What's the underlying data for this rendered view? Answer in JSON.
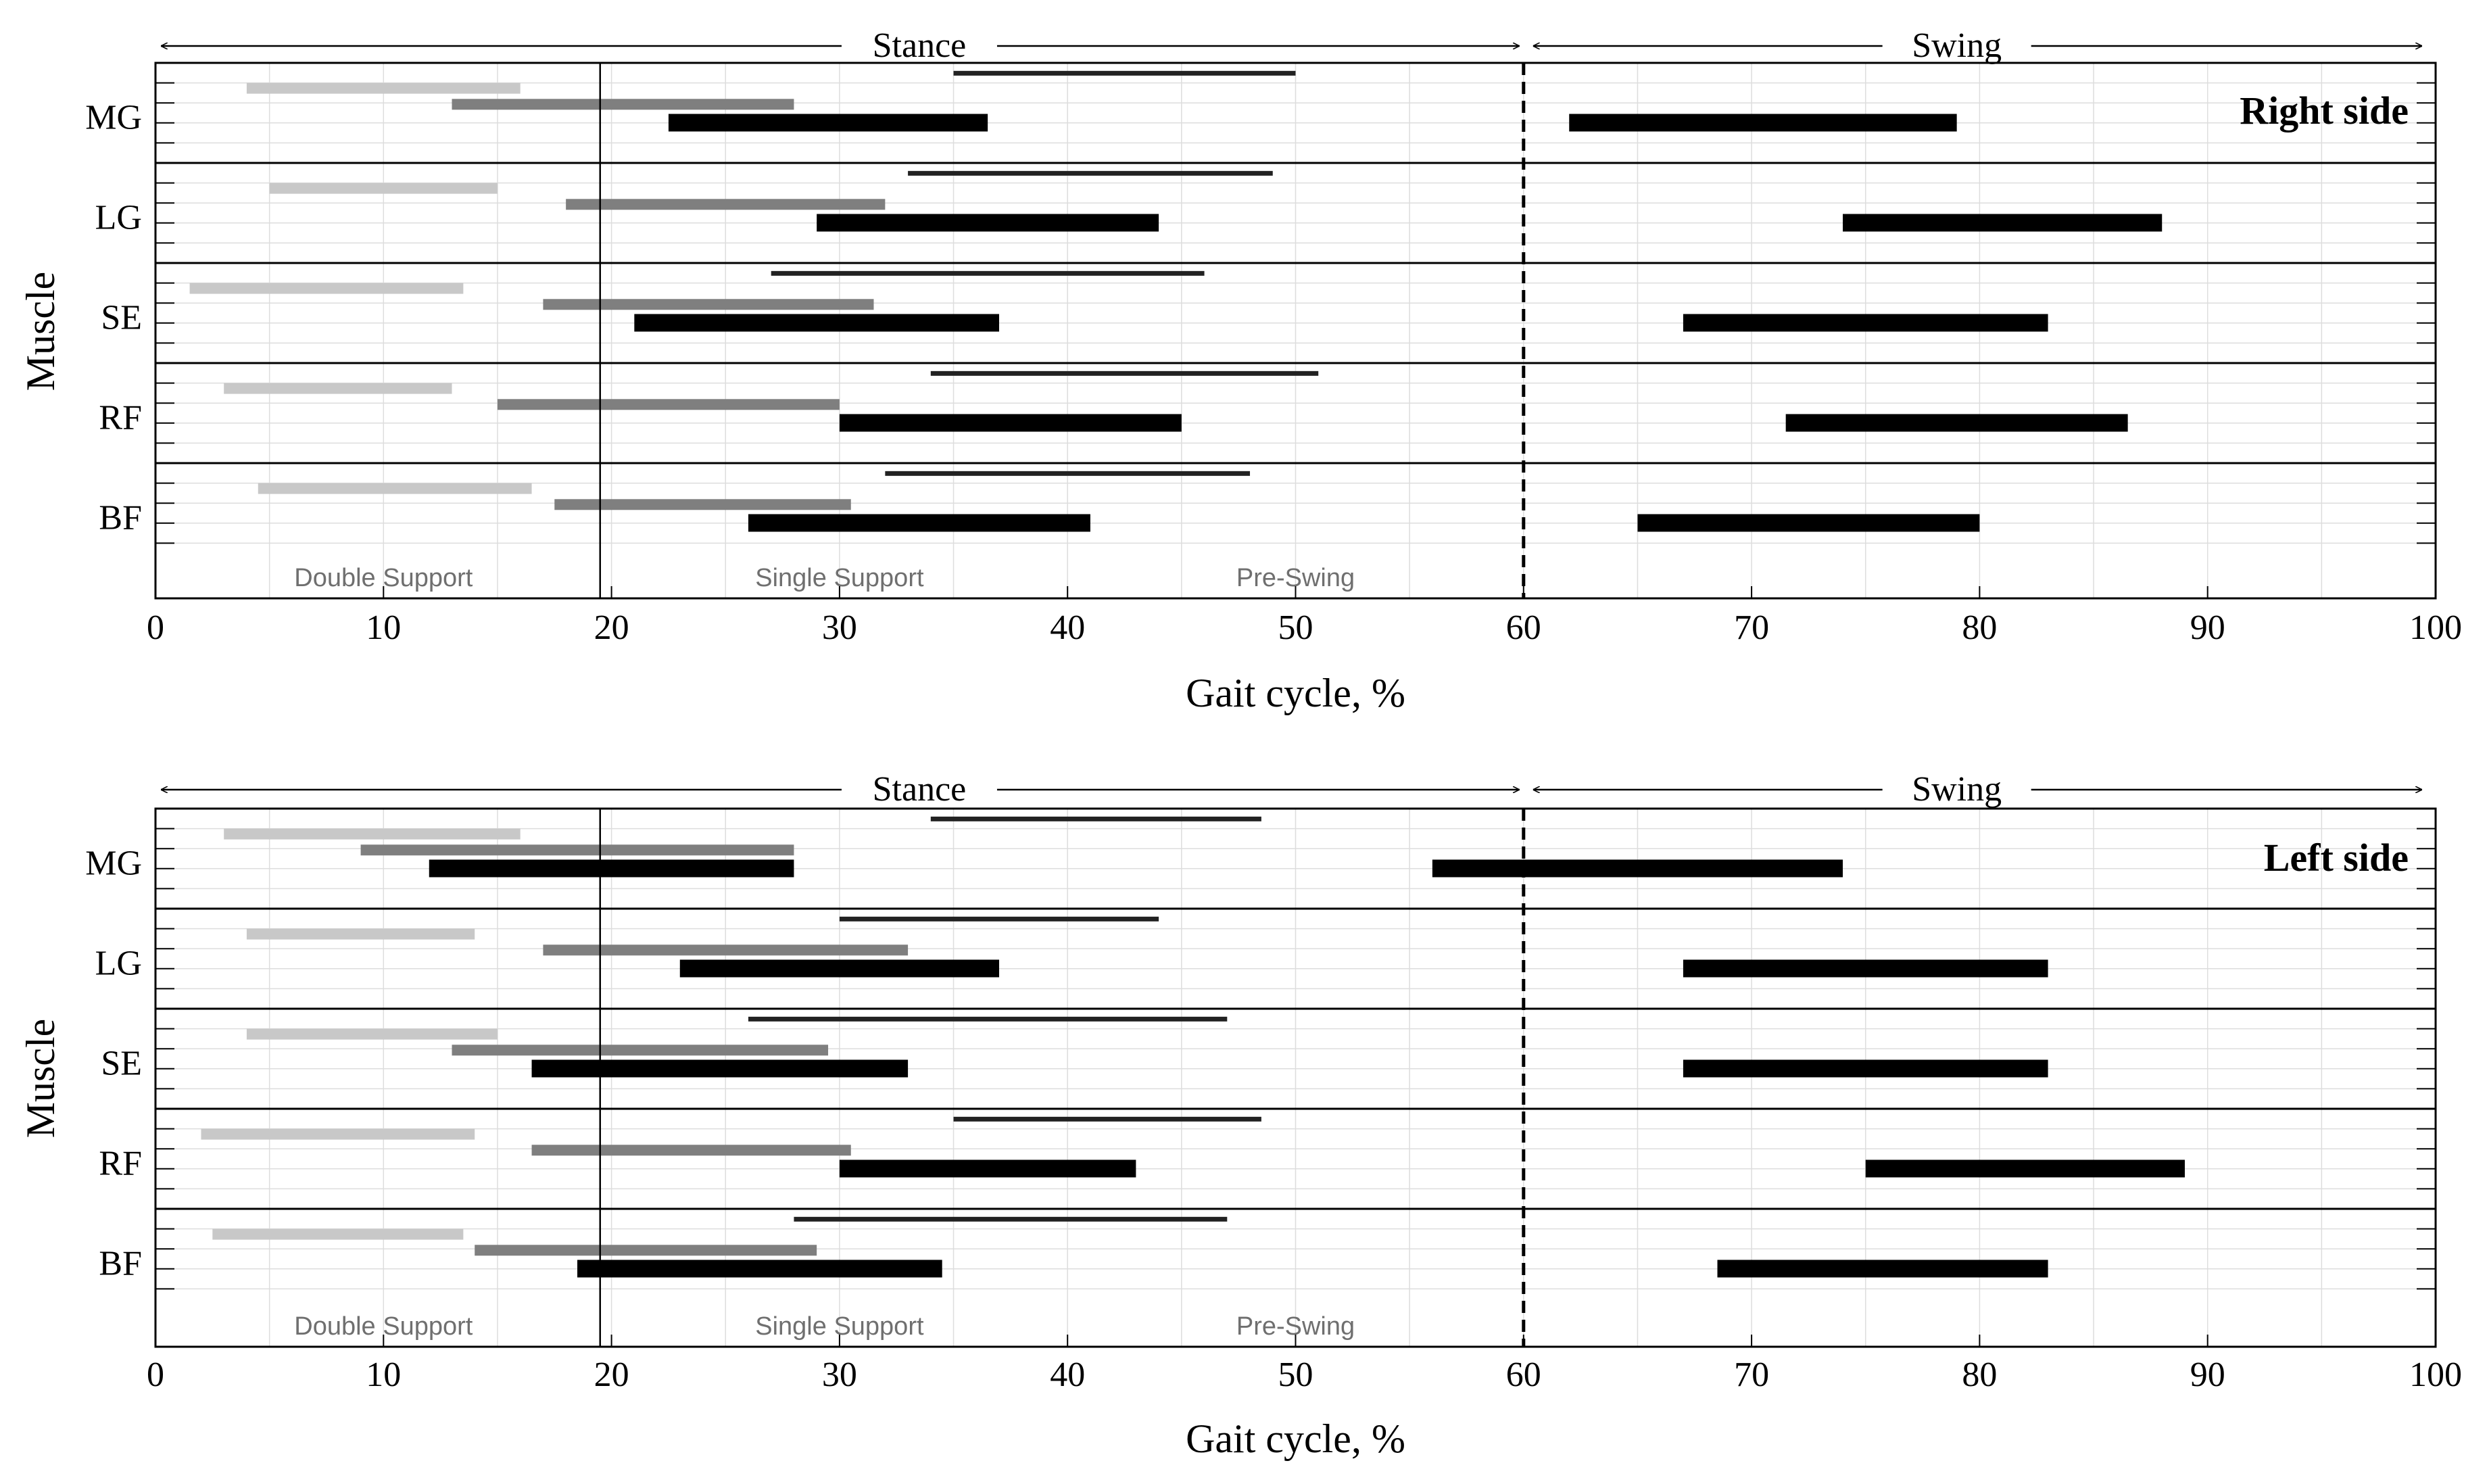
{
  "colors": {
    "light_gray": "#c8c8c8",
    "mid_gray": "#7f7f7f",
    "black": "#000000",
    "grid": "#dddddd",
    "phase_label": "#6f6f6f"
  },
  "chart_data": [
    {
      "type": "gantt",
      "panel": "right",
      "side_label": "Right side",
      "xlabel": "Gait cycle, %",
      "ylabel": "Muscle",
      "xlim": [
        0,
        100
      ],
      "x_ticks": [
        "0",
        "10",
        "20",
        "30",
        "40",
        "50",
        "60",
        "70",
        "80",
        "90",
        "100"
      ],
      "stance_label": "Stance",
      "swing_label": "Swing",
      "stance_swing_boundary": 60,
      "single_support_boundary": 19.5,
      "phase_labels": [
        "Double Support",
        "Single Support",
        "Pre-Swing"
      ],
      "muscles": [
        {
          "name": "MG",
          "bars": [
            {
              "start": 35,
              "end": 50,
              "style": "thin"
            },
            {
              "start": 4,
              "end": 16,
              "style": "light"
            },
            {
              "start": 13,
              "end": 28,
              "style": "mid"
            },
            {
              "start": 22.5,
              "end": 36.5,
              "style": "thick"
            },
            {
              "start": 62,
              "end": 79,
              "style": "thick"
            }
          ]
        },
        {
          "name": "LG",
          "bars": [
            {
              "start": 33,
              "end": 49,
              "style": "thin"
            },
            {
              "start": 5,
              "end": 15,
              "style": "light"
            },
            {
              "start": 18,
              "end": 32,
              "style": "mid"
            },
            {
              "start": 29,
              "end": 44,
              "style": "thick"
            },
            {
              "start": 74,
              "end": 88,
              "style": "thick"
            }
          ]
        },
        {
          "name": "SE",
          "bars": [
            {
              "start": 27,
              "end": 46,
              "style": "thin"
            },
            {
              "start": 1.5,
              "end": 13.5,
              "style": "light"
            },
            {
              "start": 17,
              "end": 31.5,
              "style": "mid"
            },
            {
              "start": 21,
              "end": 37,
              "style": "thick"
            },
            {
              "start": 67,
              "end": 83,
              "style": "thick"
            }
          ]
        },
        {
          "name": "RF",
          "bars": [
            {
              "start": 34,
              "end": 51,
              "style": "thin"
            },
            {
              "start": 3,
              "end": 13,
              "style": "light"
            },
            {
              "start": 15,
              "end": 30,
              "style": "mid"
            },
            {
              "start": 30,
              "end": 45,
              "style": "thick"
            },
            {
              "start": 71.5,
              "end": 86.5,
              "style": "thick"
            }
          ]
        },
        {
          "name": "BF",
          "bars": [
            {
              "start": 32,
              "end": 48,
              "style": "thin"
            },
            {
              "start": 4.5,
              "end": 16.5,
              "style": "light"
            },
            {
              "start": 17.5,
              "end": 30.5,
              "style": "mid"
            },
            {
              "start": 26,
              "end": 41,
              "style": "thick"
            },
            {
              "start": 65,
              "end": 80,
              "style": "thick"
            }
          ]
        }
      ]
    },
    {
      "type": "gantt",
      "panel": "left",
      "side_label": "Left side",
      "xlabel": "Gait cycle, %",
      "ylabel": "Muscle",
      "xlim": [
        0,
        100
      ],
      "x_ticks": [
        "0",
        "10",
        "20",
        "30",
        "40",
        "50",
        "60",
        "70",
        "80",
        "90",
        "100"
      ],
      "stance_label": "Stance",
      "swing_label": "Swing",
      "stance_swing_boundary": 60,
      "single_support_boundary": 19.5,
      "phase_labels": [
        "Double Support",
        "Single Support",
        "Pre-Swing"
      ],
      "muscles": [
        {
          "name": "MG",
          "bars": [
            {
              "start": 34,
              "end": 48.5,
              "style": "thin"
            },
            {
              "start": 3,
              "end": 16,
              "style": "light"
            },
            {
              "start": 9,
              "end": 28,
              "style": "mid"
            },
            {
              "start": 12,
              "end": 28,
              "style": "thick"
            },
            {
              "start": 56,
              "end": 74,
              "style": "thick"
            }
          ]
        },
        {
          "name": "LG",
          "bars": [
            {
              "start": 30,
              "end": 44,
              "style": "thin"
            },
            {
              "start": 4,
              "end": 14,
              "style": "light"
            },
            {
              "start": 17,
              "end": 33,
              "style": "mid"
            },
            {
              "start": 23,
              "end": 37,
              "style": "thick"
            },
            {
              "start": 67,
              "end": 83,
              "style": "thick"
            }
          ]
        },
        {
          "name": "SE",
          "bars": [
            {
              "start": 26,
              "end": 47,
              "style": "thin"
            },
            {
              "start": 4,
              "end": 15,
              "style": "light"
            },
            {
              "start": 13,
              "end": 29.5,
              "style": "mid"
            },
            {
              "start": 16.5,
              "end": 33,
              "style": "thick"
            },
            {
              "start": 67,
              "end": 83,
              "style": "thick"
            }
          ]
        },
        {
          "name": "RF",
          "bars": [
            {
              "start": 35,
              "end": 48.5,
              "style": "thin"
            },
            {
              "start": 2,
              "end": 14,
              "style": "light"
            },
            {
              "start": 16.5,
              "end": 30.5,
              "style": "mid"
            },
            {
              "start": 30,
              "end": 43,
              "style": "thick"
            },
            {
              "start": 75,
              "end": 89,
              "style": "thick"
            }
          ]
        },
        {
          "name": "BF",
          "bars": [
            {
              "start": 28,
              "end": 47,
              "style": "thin"
            },
            {
              "start": 2.5,
              "end": 13.5,
              "style": "light"
            },
            {
              "start": 14,
              "end": 29,
              "style": "mid"
            },
            {
              "start": 18.5,
              "end": 34.5,
              "style": "thick"
            },
            {
              "start": 68.5,
              "end": 83,
              "style": "thick"
            }
          ]
        }
      ]
    }
  ]
}
